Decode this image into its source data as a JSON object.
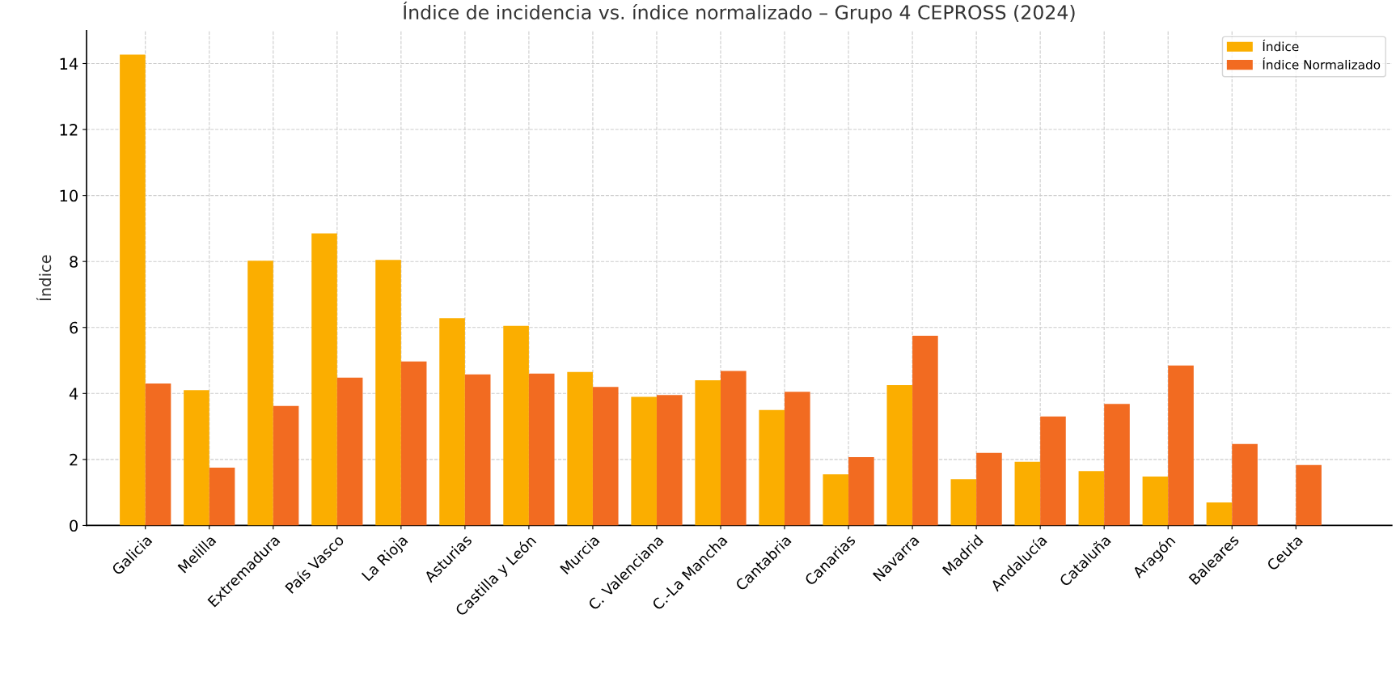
{
  "chart_data": {
    "type": "bar",
    "title": "Índice de incidencia vs. índice normalizado – Grupo 4 CEPROSS (2024)",
    "ylabel": "Índice",
    "categories": [
      "Galicia",
      "Melilla",
      "Extremadura",
      "País Vasco",
      "La Rioja",
      "Asturias",
      "Castilla y León",
      "Murcia",
      "C. Valenciana",
      "C.-La Mancha",
      "Cantabria",
      "Canarias",
      "Navarra",
      "Madrid",
      "Andalucía",
      "Cataluña",
      "Aragón",
      "Baleares",
      "Ceuta"
    ],
    "series": [
      {
        "name": "Índice",
        "color": "#fbae00",
        "values": [
          14.27,
          4.1,
          8.02,
          8.85,
          8.05,
          6.28,
          6.05,
          4.65,
          3.9,
          4.4,
          3.5,
          1.55,
          4.25,
          1.4,
          1.93,
          1.65,
          1.48,
          0.7,
          0
        ]
      },
      {
        "name": "Índice Normalizado",
        "color": "#f26b21",
        "values": [
          4.3,
          1.75,
          3.62,
          4.48,
          4.97,
          4.58,
          4.6,
          4.2,
          3.95,
          4.68,
          4.05,
          2.07,
          5.75,
          2.2,
          3.3,
          3.68,
          4.85,
          2.47,
          1.83
        ]
      }
    ],
    "ylim": [
      0,
      15
    ],
    "yticks": [
      0,
      2,
      4,
      6,
      8,
      10,
      12,
      14
    ],
    "grid": true,
    "legend": "top right"
  }
}
